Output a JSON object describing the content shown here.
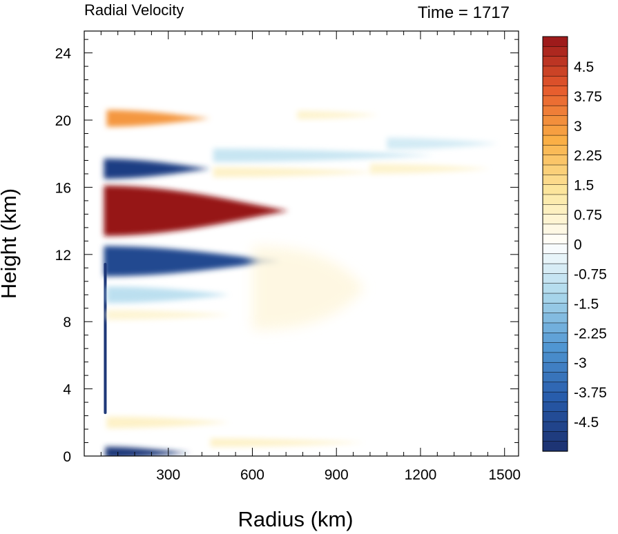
{
  "chart_data": {
    "type": "heatmap",
    "title_left": "Radial Velocity",
    "title_right": "Time = 1717",
    "xlabel": "Radius (km)",
    "ylabel": "Height (km)",
    "xlim": [
      0,
      1550
    ],
    "ylim": [
      0,
      25.3
    ],
    "xticks": [
      300,
      600,
      900,
      1200,
      1500
    ],
    "xtick_labels": [
      "300",
      "600",
      "900",
      "1200",
      "1500"
    ],
    "yticks": [
      0,
      4,
      8,
      12,
      16,
      20,
      24
    ],
    "ytick_labels": [
      "0",
      "4",
      "8",
      "12",
      "16",
      "20",
      "24"
    ],
    "colorbar": {
      "min": -5.25,
      "max": 5.25,
      "step": 0.25,
      "tick_values": [
        4.5,
        3.75,
        3,
        2.25,
        1.5,
        0.75,
        0,
        -0.75,
        -1.5,
        -2.25,
        -3,
        -3.75,
        -4.5
      ],
      "tick_labels": [
        "4.5",
        "3.75",
        "3",
        "2.25",
        "1.5",
        "0.75",
        "0",
        "-0.75",
        "-1.5",
        "-2.25",
        "-3",
        "-3.75",
        "-4.5"
      ]
    },
    "features": [
      {
        "kind": "outflow_jet",
        "value": 5.5,
        "r_start": 70,
        "r_end": 730,
        "z_center": 14.6,
        "half_thickness": 1.5
      },
      {
        "kind": "inflow_band",
        "value": -4.5,
        "r_start": 70,
        "r_end": 700,
        "z_center": 11.6,
        "half_thickness": 0.9
      },
      {
        "kind": "inflow_band",
        "value": -4.8,
        "r_start": 70,
        "r_end": 450,
        "z_center": 17.1,
        "half_thickness": 0.6
      },
      {
        "kind": "outflow_band",
        "value": 3.0,
        "r_start": 80,
        "r_end": 450,
        "z_center": 20.1,
        "half_thickness": 0.5
      },
      {
        "kind": "boundary_inflow",
        "value": -5.0,
        "r_start": 75,
        "r_end": 380,
        "z_center": 0.2,
        "half_thickness": 0.35
      },
      {
        "kind": "eyewall_column",
        "value": -5.0,
        "r_start": 70,
        "r_end": 80,
        "z_center": 7.0,
        "half_thickness": 4.5
      },
      {
        "kind": "weak_outflow_region",
        "value": 0.5,
        "r_start": 600,
        "r_end": 1000,
        "z_center": 10.0,
        "half_thickness": 2.5
      }
    ]
  }
}
